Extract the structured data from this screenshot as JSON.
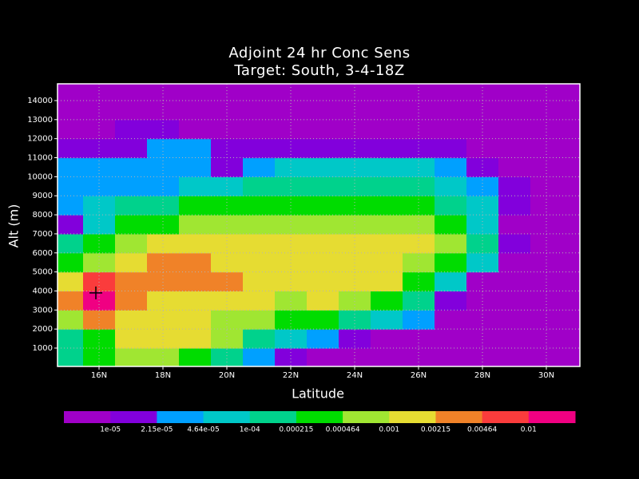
{
  "chart_data": {
    "type": "contour",
    "title": "Adjoint 24 hr Conc Sens",
    "subtitle": "Target: South, 3-4-18Z",
    "x_label": "Latitude",
    "y_label": "Alt (m)",
    "xlim": [
      14.7,
      31.05
    ],
    "ylim": [
      36,
      14880
    ],
    "xticks": [
      {
        "value": 16,
        "label": "16N"
      },
      {
        "value": 18,
        "label": "18N"
      },
      {
        "value": 20,
        "label": "20N"
      },
      {
        "value": 22,
        "label": "22N"
      },
      {
        "value": 24,
        "label": "24N"
      },
      {
        "value": 26,
        "label": "26N"
      },
      {
        "value": 28,
        "label": "28N"
      },
      {
        "value": 30,
        "label": "30N"
      }
    ],
    "yticks": [
      1000,
      2000,
      3000,
      4000,
      5000,
      6000,
      7000,
      8000,
      9000,
      10000,
      11000,
      12000,
      13000,
      14000
    ],
    "grid": true,
    "levels": [
      {
        "value": 1e-05,
        "label": "1e-05"
      },
      {
        "value": 2.15e-05,
        "label": "2.15e-05"
      },
      {
        "value": 4.64e-05,
        "label": "4.64e-05"
      },
      {
        "value": 0.0001,
        "label": "1e-04"
      },
      0.000215,
      0.000464,
      0.001,
      0.00215,
      0.00464,
      0.01
    ],
    "colors": [
      "#a000c8",
      "#8200dc",
      "#00a0ff",
      "#00c8c8",
      "#00d28c",
      "#00dc00",
      "#a0e632",
      "#e6dc32",
      "#f08228",
      "#fa3c3c",
      "#f00082"
    ],
    "x": [
      15,
      16,
      17,
      18,
      19,
      20,
      21,
      22,
      23,
      24,
      25,
      26,
      27,
      28,
      29,
      30,
      31
    ],
    "y": [
      500,
      1500,
      2500,
      3500,
      4500,
      5500,
      6500,
      7500,
      8500,
      9500,
      10500,
      11500,
      12500,
      13500,
      14500
    ],
    "z": [
      [
        0.00015,
        0.0003,
        0.0007,
        0.0007,
        0.0003,
        0.00015,
        3e-05,
        1.5e-05,
        5e-06,
        5e-06,
        5e-06,
        5e-06,
        5e-06,
        5e-06,
        5e-06,
        5e-06,
        5e-06
      ],
      [
        0.00015,
        0.0003,
        0.0015,
        0.0015,
        0.0015,
        0.0007,
        0.00015,
        7e-05,
        3e-05,
        1.5e-05,
        5e-06,
        5e-06,
        5e-06,
        5e-06,
        5e-06,
        5e-06,
        5e-06
      ],
      [
        0.0007,
        0.003,
        0.0015,
        0.0015,
        0.0015,
        0.0007,
        0.0007,
        0.0003,
        0.0003,
        0.00015,
        7e-05,
        3e-05,
        5e-06,
        5e-06,
        5e-06,
        5e-06,
        5e-06
      ],
      [
        0.003,
        0.015,
        0.003,
        0.0015,
        0.0015,
        0.0015,
        0.0015,
        0.0007,
        0.0015,
        0.0007,
        0.0003,
        0.00015,
        1.5e-05,
        5e-06,
        5e-06,
        5e-06,
        5e-06
      ],
      [
        0.0015,
        0.007,
        0.003,
        0.003,
        0.003,
        0.003,
        0.0015,
        0.0015,
        0.0015,
        0.0015,
        0.0015,
        0.0003,
        7e-05,
        5e-06,
        5e-06,
        5e-06,
        5e-06
      ],
      [
        0.0003,
        0.0007,
        0.0015,
        0.003,
        0.003,
        0.0015,
        0.0015,
        0.0015,
        0.0015,
        0.0015,
        0.0015,
        0.0007,
        0.0003,
        7e-05,
        5e-06,
        5e-06,
        5e-06
      ],
      [
        0.00015,
        0.0003,
        0.0007,
        0.0015,
        0.0015,
        0.0015,
        0.0015,
        0.0015,
        0.0015,
        0.0015,
        0.0015,
        0.0015,
        0.0007,
        0.00015,
        1.5e-05,
        5e-06,
        5e-06
      ],
      [
        1.5e-05,
        7e-05,
        0.0003,
        0.0003,
        0.0007,
        0.0007,
        0.0007,
        0.0007,
        0.0007,
        0.0007,
        0.0007,
        0.0007,
        0.0003,
        7e-05,
        5e-06,
        5e-06,
        5e-06
      ],
      [
        3e-05,
        7e-05,
        0.00015,
        0.00015,
        0.0003,
        0.0003,
        0.0003,
        0.0003,
        0.0003,
        0.0003,
        0.0003,
        0.0003,
        0.00015,
        7e-05,
        1.5e-05,
        5e-06,
        5e-06
      ],
      [
        3e-05,
        3e-05,
        3e-05,
        3e-05,
        7e-05,
        7e-05,
        0.00015,
        0.00015,
        0.00015,
        0.00015,
        0.00015,
        0.00015,
        7e-05,
        3e-05,
        1.5e-05,
        5e-06,
        5e-06
      ],
      [
        3e-05,
        3e-05,
        3e-05,
        3e-05,
        3e-05,
        1.5e-05,
        3e-05,
        7e-05,
        7e-05,
        7e-05,
        7e-05,
        7e-05,
        3e-05,
        1.5e-05,
        5e-06,
        5e-06,
        5e-06
      ],
      [
        1.5e-05,
        1.5e-05,
        1.5e-05,
        3e-05,
        3e-05,
        1.5e-05,
        1.5e-05,
        1.5e-05,
        1.5e-05,
        1.5e-05,
        1.5e-05,
        1.5e-05,
        1.5e-05,
        5e-06,
        5e-06,
        5e-06,
        5e-06
      ],
      [
        5e-06,
        5e-06,
        1.5e-05,
        1.5e-05,
        5e-06,
        5e-06,
        5e-06,
        5e-06,
        5e-06,
        5e-06,
        5e-06,
        5e-06,
        5e-06,
        5e-06,
        5e-06,
        5e-06,
        5e-06
      ],
      [
        5e-06,
        5e-06,
        5e-06,
        5e-06,
        5e-06,
        5e-06,
        5e-06,
        5e-06,
        5e-06,
        5e-06,
        5e-06,
        5e-06,
        5e-06,
        5e-06,
        5e-06,
        5e-06,
        5e-06
      ],
      [
        5e-06,
        5e-06,
        5e-06,
        5e-06,
        5e-06,
        5e-06,
        5e-06,
        5e-06,
        5e-06,
        5e-06,
        5e-06,
        5e-06,
        5e-06,
        5e-06,
        5e-06,
        5e-06,
        5e-06
      ]
    ],
    "points": [
      {
        "x": 15.9,
        "y": 3900
      }
    ]
  }
}
